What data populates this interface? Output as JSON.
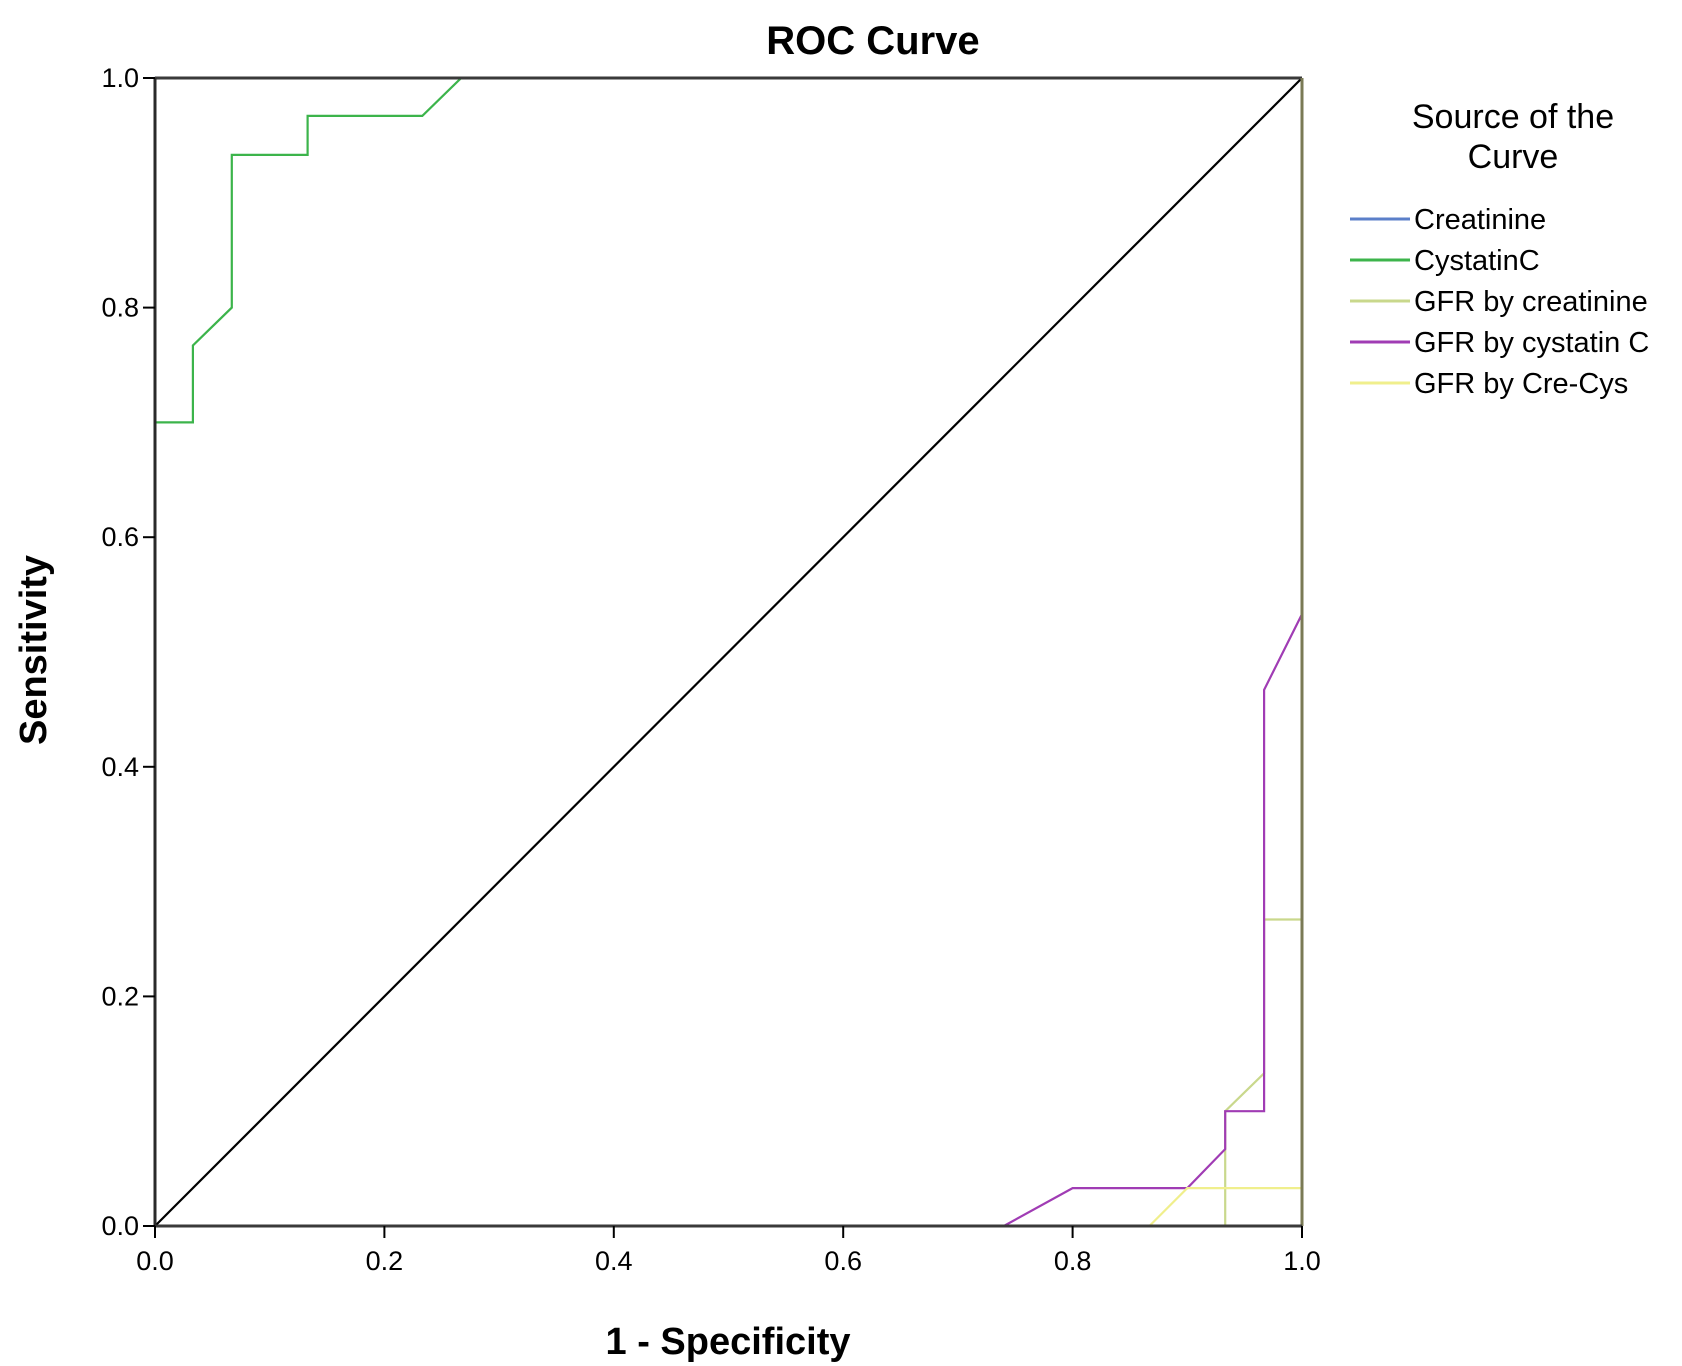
{
  "chart_data": {
    "type": "line",
    "title": "ROC Curve",
    "xlabel": "1 - Specificity",
    "ylabel": "Sensitivity",
    "xlim": [
      0,
      1
    ],
    "ylim": [
      0,
      1
    ],
    "xticks": [
      "0.0",
      "0.2",
      "0.4",
      "0.6",
      "0.8",
      "1.0"
    ],
    "yticks": [
      "0.0",
      "0.2",
      "0.4",
      "0.6",
      "0.8",
      "1.0"
    ],
    "grid": false,
    "legend": {
      "position": "right",
      "title_lines": [
        "Source of the",
        "Curve"
      ]
    },
    "reference_line": {
      "x": [
        0,
        1
      ],
      "y": [
        0,
        1
      ],
      "color": "#000000"
    },
    "series": [
      {
        "name": "Creatinine",
        "color": "#5b7fc9",
        "x": [
          0,
          0,
          1
        ],
        "y": [
          0,
          1,
          1
        ]
      },
      {
        "name": "CystatinC",
        "color": "#3cb44b",
        "x": [
          0,
          0,
          0.033,
          0.033,
          0.067,
          0.067,
          0.133,
          0.133,
          0.233,
          0.267,
          1
        ],
        "y": [
          0,
          0.7,
          0.7,
          0.767,
          0.8,
          0.933,
          0.933,
          0.967,
          0.967,
          1,
          1
        ]
      },
      {
        "name": "GFR by creatinine",
        "color": "#c9d88c",
        "x": [
          0.933,
          0.933,
          0.967,
          0.967,
          1,
          1
        ],
        "y": [
          0,
          0.1,
          0.133,
          0.267,
          0.267,
          1
        ]
      },
      {
        "name": "GFR by cystatin C",
        "color": "#a03cb4",
        "x": [
          0.74,
          0.8,
          0.9,
          0.933,
          0.933,
          0.967,
          0.967,
          1
        ],
        "y": [
          0,
          0.033,
          0.033,
          0.067,
          0.1,
          0.1,
          0.467,
          0.533
        ]
      },
      {
        "name": "GFR by Cre-Cys",
        "color": "#f0ef8c",
        "x": [
          0.867,
          0.9,
          1
        ],
        "y": [
          0,
          0.033,
          0.033
        ]
      }
    ]
  }
}
